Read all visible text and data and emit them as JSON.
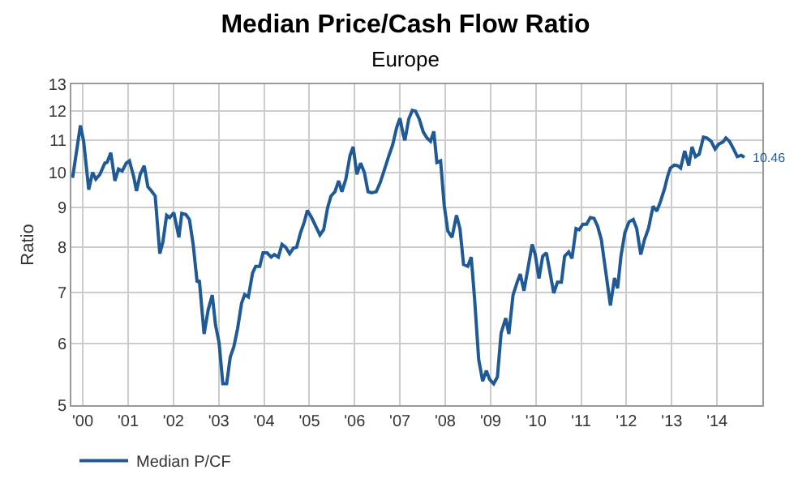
{
  "chart_data": {
    "type": "line",
    "title": "Median Price/Cash Flow Ratio",
    "subtitle": "Europe",
    "ylabel": "Ratio",
    "log": "y",
    "grid": true,
    "legend": "bottom left",
    "line_style": "solid",
    "marker": "none",
    "xlim": [
      "1999-10-01",
      "2015-01-01"
    ],
    "xticks": [
      {
        "value": "2000-01-01",
        "label": "'00"
      },
      {
        "value": "2001-01-01",
        "label": "'01"
      },
      {
        "value": "2002-01-01",
        "label": "'02"
      },
      {
        "value": "2003-01-01",
        "label": "'03"
      },
      {
        "value": "2004-01-01",
        "label": "'04"
      },
      {
        "value": "2005-01-01",
        "label": "'05"
      },
      {
        "value": "2006-01-01",
        "label": "'06"
      },
      {
        "value": "2007-01-01",
        "label": "'07"
      },
      {
        "value": "2008-01-01",
        "label": "'08"
      },
      {
        "value": "2009-01-01",
        "label": "'09"
      },
      {
        "value": "2010-01-01",
        "label": "'10"
      },
      {
        "value": "2011-01-01",
        "label": "'11"
      },
      {
        "value": "2012-01-01",
        "label": "'12"
      },
      {
        "value": "2013-01-01",
        "label": "'13"
      },
      {
        "value": "2014-01-01",
        "label": "'14"
      }
    ],
    "ylim": [
      5,
      13
    ],
    "yticks": [
      5,
      6,
      7,
      8,
      9,
      10,
      11,
      12,
      13
    ],
    "annotations": [
      {
        "text": "10.46",
        "x": "2014-08-10",
        "y": 10.46
      }
    ],
    "x": [
      "1999-10-11",
      "1999-12-13",
      "2000-01-08",
      "2000-02-18",
      "2000-03-20",
      "2000-04-15",
      "2000-05-18",
      "2000-06-27",
      "2000-07-15",
      "2000-08-14",
      "2000-09-16",
      "2000-10-15",
      "2000-11-14",
      "2000-12-16",
      "2001-01-11",
      "2001-02-14",
      "2001-03-09",
      "2001-04-08",
      "2001-05-10",
      "2001-06-09",
      "2001-07-08",
      "2001-08-07",
      "2001-09-13",
      "2001-10-08",
      "2001-11-07",
      "2001-12-02",
      "2002-01-04",
      "2002-02-14",
      "2002-03-09",
      "2002-04-11",
      "2002-05-10",
      "2002-06-09",
      "2002-07-11",
      "2002-07-29",
      "2002-09-05",
      "2002-10-08",
      "2002-11-10",
      "2002-12-06",
      "2003-01-04",
      "2003-02-03",
      "2003-03-06",
      "2003-04-04",
      "2003-05-03",
      "2003-06-02",
      "2003-07-04",
      "2003-07-29",
      "2003-08-28",
      "2003-10-01",
      "2003-10-26",
      "2003-11-28",
      "2003-12-24",
      "2004-01-26",
      "2004-02-28",
      "2004-03-24",
      "2004-04-26",
      "2004-05-25",
      "2004-06-24",
      "2004-07-26",
      "2004-08-25",
      "2004-09-20",
      "2004-10-22",
      "2004-11-21",
      "2004-12-16",
      "2005-01-19",
      "2005-02-21",
      "2005-03-27",
      "2005-04-26",
      "2005-05-28",
      "2005-06-24",
      "2005-07-26",
      "2005-08-25",
      "2005-09-20",
      "2005-10-22",
      "2005-11-25",
      "2005-12-20",
      "2006-01-19",
      "2006-02-18",
      "2006-03-20",
      "2006-04-19",
      "2006-05-18",
      "2006-06-24",
      "2006-07-26",
      "2006-08-28",
      "2006-10-05",
      "2006-11-03",
      "2006-12-06",
      "2007-01-01",
      "2007-01-28",
      "2007-02-10",
      "2007-03-13",
      "2007-04-11",
      "2007-05-07",
      "2007-06-06",
      "2007-07-08",
      "2007-08-07",
      "2007-09-05",
      "2007-10-01",
      "2007-10-26",
      "2007-11-25",
      "2007-12-24",
      "2008-01-22",
      "2008-02-25",
      "2008-04-01",
      "2008-04-29",
      "2008-05-28",
      "2008-07-01",
      "2008-07-29",
      "2008-08-25",
      "2008-09-27",
      "2008-10-29",
      "2008-11-28",
      "2008-12-24",
      "2009-01-26",
      "2009-02-25",
      "2009-03-27",
      "2009-05-03",
      "2009-05-28",
      "2009-07-01",
      "2009-08-03",
      "2009-08-28",
      "2009-09-27",
      "2009-10-29",
      "2009-12-02",
      "2009-12-27",
      "2010-01-26",
      "2010-02-25",
      "2010-03-27",
      "2010-04-26",
      "2010-05-25",
      "2010-06-24",
      "2010-07-26",
      "2010-08-21",
      "2010-09-23",
      "2010-10-19",
      "2010-11-21",
      "2010-12-16",
      "2011-01-15",
      "2011-02-14",
      "2011-03-16",
      "2011-04-15",
      "2011-05-14",
      "2011-06-13",
      "2011-07-15",
      "2011-08-25",
      "2011-09-27",
      "2011-10-22",
      "2011-11-18",
      "2011-12-20",
      "2012-01-22",
      "2012-02-25",
      "2012-03-24",
      "2012-04-26",
      "2012-05-25",
      "2012-06-27",
      "2012-08-03",
      "2012-09-02",
      "2012-10-01",
      "2012-11-03",
      "2012-11-28",
      "2012-12-20",
      "2013-01-22",
      "2013-02-18",
      "2013-03-13",
      "2013-04-15",
      "2013-05-18",
      "2013-06-13",
      "2013-07-11",
      "2013-08-10",
      "2013-09-13",
      "2013-10-11",
      "2013-11-14",
      "2013-12-16",
      "2014-01-15",
      "2014-02-18",
      "2014-03-13",
      "2014-04-11",
      "2014-05-14",
      "2014-06-13",
      "2014-07-15",
      "2014-08-10"
    ],
    "series": [
      {
        "name": "Median P/CF",
        "color": "#1f5a96",
        "values": [
          9.84,
          11.5,
          10.97,
          9.5,
          10.0,
          9.8,
          9.94,
          10.28,
          10.3,
          10.6,
          9.75,
          10.1,
          10.04,
          10.28,
          10.35,
          9.88,
          9.46,
          9.94,
          10.2,
          9.58,
          9.46,
          9.32,
          7.85,
          8.13,
          8.8,
          8.74,
          8.87,
          8.24,
          8.85,
          8.82,
          8.69,
          8.07,
          7.21,
          7.25,
          6.18,
          6.64,
          6.94,
          6.35,
          6.02,
          5.33,
          5.33,
          5.77,
          5.95,
          6.28,
          6.77,
          6.95,
          6.9,
          7.41,
          7.56,
          7.56,
          7.87,
          7.87,
          7.77,
          7.83,
          7.77,
          8.07,
          8.0,
          7.85,
          7.98,
          8.0,
          8.36,
          8.63,
          8.93,
          8.74,
          8.52,
          8.3,
          8.43,
          9.0,
          9.32,
          9.44,
          9.75,
          9.44,
          9.8,
          10.52,
          10.79,
          9.94,
          10.28,
          10.0,
          9.44,
          9.41,
          9.44,
          9.7,
          10.07,
          10.52,
          10.85,
          11.43,
          11.75,
          11.18,
          11.0,
          11.72,
          12.03,
          12.0,
          11.72,
          11.28,
          11.08,
          10.97,
          11.3,
          10.3,
          10.35,
          9.07,
          8.4,
          8.24,
          8.8,
          8.46,
          7.6,
          7.56,
          7.77,
          6.86,
          5.73,
          5.37,
          5.54,
          5.4,
          5.33,
          5.44,
          6.2,
          6.48,
          6.18,
          6.94,
          7.21,
          7.39,
          7.03,
          7.51,
          8.07,
          7.83,
          7.29,
          7.79,
          7.87,
          7.41,
          6.98,
          7.21,
          7.21,
          7.79,
          7.89,
          7.74,
          8.46,
          8.43,
          8.57,
          8.57,
          8.74,
          8.72,
          8.52,
          8.18,
          7.51,
          6.73,
          7.3,
          7.08,
          7.79,
          8.36,
          8.63,
          8.69,
          8.46,
          7.83,
          8.18,
          8.46,
          9.04,
          8.91,
          9.16,
          9.52,
          9.88,
          10.13,
          10.22,
          10.2,
          10.13,
          10.66,
          10.2,
          10.79,
          10.48,
          10.56,
          11.11,
          11.08,
          10.97,
          10.72,
          10.88,
          10.95,
          11.08,
          10.97,
          10.72,
          10.48,
          10.52,
          10.46
        ]
      }
    ]
  }
}
